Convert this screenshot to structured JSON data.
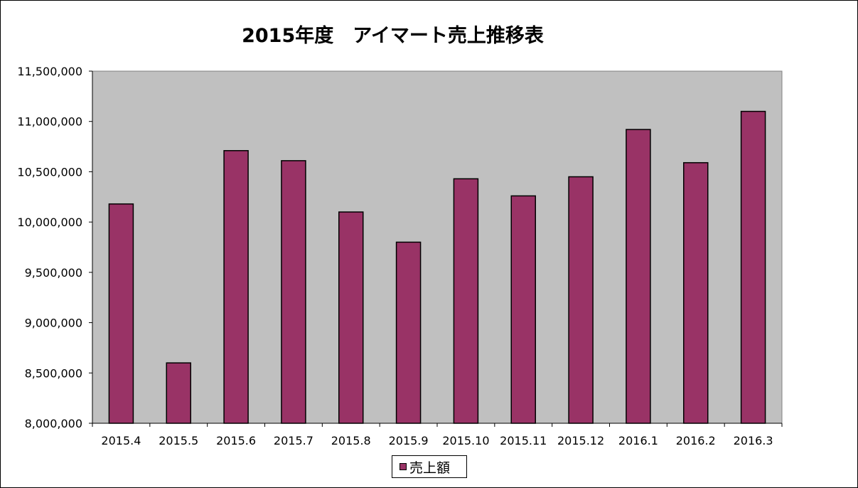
{
  "colors": {
    "plot_background": "#c0c0c0",
    "bar": "#993366",
    "bar_outline": "#000000"
  },
  "chart_data": {
    "type": "bar",
    "title": "2015年度　アイマート売上推移表",
    "categories": [
      "2015.4",
      "2015.5",
      "2015.6",
      "2015.7",
      "2015.8",
      "2015.9",
      "2015.10",
      "2015.11",
      "2015.12",
      "2016.1",
      "2016.2",
      "2016.3"
    ],
    "series": [
      {
        "name": "売上額",
        "values": [
          10180000,
          8600000,
          10710000,
          10610000,
          10100000,
          9800000,
          10430000,
          10260000,
          10450000,
          10920000,
          10590000,
          11100000
        ]
      }
    ],
    "ylim": [
      8000000,
      11500000
    ],
    "yticks": [
      "8,000,000",
      "8,500,000",
      "9,000,000",
      "9,500,000",
      "10,000,000",
      "10,500,000",
      "11,000,000",
      "11,500,000"
    ],
    "legend": "bottom-center",
    "grid": false
  }
}
